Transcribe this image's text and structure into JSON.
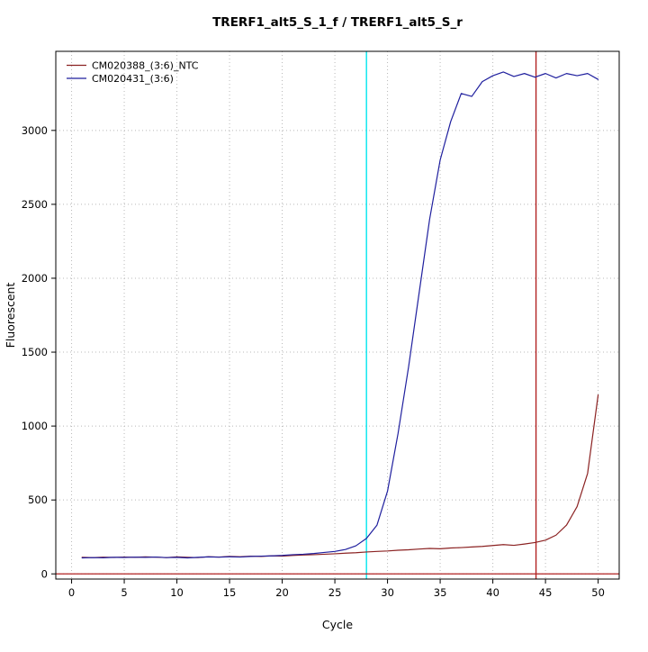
{
  "window": {
    "title": "TRERF1_alt5_S_1_f / TRERF1_alt5_S_r"
  },
  "chart_data": {
    "type": "line",
    "title": "TRERF1_alt5_S_1_f / TRERF1_alt5_S_r",
    "xlabel": "Cycle",
    "ylabel": "Fluorescent",
    "xlim": [
      -1.5,
      52
    ],
    "ylim": [
      -35,
      3535
    ],
    "xticks": [
      0,
      5,
      10,
      15,
      20,
      25,
      30,
      35,
      40,
      45,
      50
    ],
    "yticks": [
      0,
      500,
      1000,
      1500,
      2000,
      2500,
      3000
    ],
    "grid": {
      "on": true,
      "color": "#b8b8b8",
      "dash": "1,3"
    },
    "legend_position": "top-left",
    "x": [
      1,
      2,
      3,
      4,
      5,
      6,
      7,
      8,
      9,
      10,
      11,
      12,
      13,
      14,
      15,
      16,
      17,
      18,
      19,
      20,
      21,
      22,
      23,
      24,
      25,
      26,
      27,
      28,
      29,
      30,
      31,
      32,
      33,
      34,
      35,
      36,
      37,
      38,
      39,
      40,
      41,
      42,
      43,
      44,
      45,
      46,
      47,
      48,
      49,
      50
    ],
    "series": [
      {
        "name": "CM020388_(3:6)_NTC",
        "color": "#8b2222",
        "values": [
          112,
          110,
          113,
          111,
          114,
          112,
          115,
          113,
          110,
          115,
          112,
          110,
          116,
          114,
          118,
          116,
          120,
          118,
          122,
          120,
          125,
          128,
          130,
          133,
          136,
          140,
          143,
          148,
          152,
          155,
          160,
          163,
          168,
          172,
          170,
          175,
          178,
          182,
          186,
          192,
          198,
          193,
          202,
          212,
          228,
          262,
          330,
          455,
          680,
          1210
        ]
      },
      {
        "name": "CM020431_(3:6)",
        "color": "#1f1f9e",
        "values": [
          108,
          110,
          109,
          112,
          111,
          113,
          112,
          114,
          110,
          112,
          108,
          112,
          115,
          113,
          116,
          114,
          118,
          120,
          122,
          125,
          130,
          133,
          138,
          145,
          152,
          165,
          190,
          240,
          330,
          560,
          950,
          1400,
          1900,
          2400,
          2800,
          3060,
          3250,
          3230,
          3330,
          3370,
          3395,
          3365,
          3385,
          3360,
          3385,
          3355,
          3385,
          3370,
          3385,
          3345
        ]
      }
    ],
    "vlines": [
      {
        "x": 28,
        "color": "#00e5ee",
        "name": "ct-marker-cyan"
      },
      {
        "x": 44.1,
        "color": "#b22222",
        "name": "ct-marker-red"
      }
    ],
    "hlines": [
      {
        "y": 0,
        "color": "#b22222",
        "name": "baseline-threshold"
      }
    ]
  }
}
